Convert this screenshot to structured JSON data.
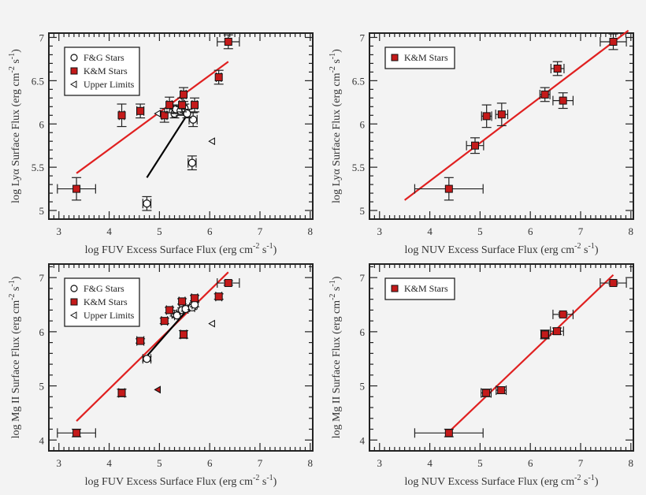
{
  "chart_data": [
    {
      "type": "scatter",
      "xlabel": [
        {
          "t": "log  FUV Excess Surface Flux (erg cm"
        },
        {
          "sup": "-2"
        },
        {
          "t": " s"
        },
        {
          "sup": "-1"
        },
        {
          "t": ")"
        }
      ],
      "ylabel": [
        {
          "t": "log Lyα  Surface Flux (erg cm"
        },
        {
          "sup": "-2"
        },
        {
          "t": " s"
        },
        {
          "sup": "-1"
        },
        {
          "t": ")"
        }
      ],
      "xlim": [
        2.8,
        8.05
      ],
      "ylim": [
        4.9,
        7.05
      ],
      "xticks": [
        3,
        4,
        5,
        6,
        7,
        8
      ],
      "yticks": [
        5,
        5.5,
        6,
        6.5,
        7
      ],
      "ytick_labels": [
        "5",
        "5.5",
        "6",
        "6.5",
        "7"
      ],
      "legend": {
        "placement": "top-left",
        "entries": [
          "F&G Stars",
          "K&M Stars",
          "Upper Limits"
        ]
      },
      "series": [
        {
          "name": "K&M Stars",
          "marker": "square-filled",
          "points": [
            {
              "x": 3.35,
              "y": 5.25,
              "xerr": 0.38,
              "yerr": 0.13
            },
            {
              "x": 4.25,
              "y": 6.1,
              "xerr": 0.05,
              "yerr": 0.13
            },
            {
              "x": 4.62,
              "y": 6.15,
              "xerr": 0.07,
              "yerr": 0.08
            },
            {
              "x": 5.1,
              "y": 6.1,
              "xerr": 0.05,
              "yerr": 0.08
            },
            {
              "x": 5.2,
              "y": 6.22,
              "xerr": 0.05,
              "yerr": 0.09
            },
            {
              "x": 5.45,
              "y": 6.22,
              "xerr": 0.05,
              "yerr": 0.08
            },
            {
              "x": 5.48,
              "y": 6.34,
              "xerr": 0.05,
              "yerr": 0.08
            },
            {
              "x": 5.7,
              "y": 6.22,
              "xerr": 0.05,
              "yerr": 0.08
            },
            {
              "x": 6.18,
              "y": 6.54,
              "xerr": 0.05,
              "yerr": 0.08
            },
            {
              "x": 6.37,
              "y": 6.95,
              "xerr": 0.22,
              "yerr": 0.08
            }
          ]
        },
        {
          "name": "F&G Stars",
          "marker": "circle-open",
          "points": [
            {
              "x": 4.75,
              "y": 5.08,
              "xerr": 0.08,
              "yerr": 0.08
            },
            {
              "x": 5.65,
              "y": 5.55,
              "xerr": 0.08,
              "yerr": 0.08
            },
            {
              "x": 5.67,
              "y": 6.05,
              "xerr": 0.08,
              "yerr": 0.08
            },
            {
              "x": 5.3,
              "y": 6.12,
              "xerr": 0.05,
              "yerr": 0.05
            },
            {
              "x": 5.33,
              "y": 6.17,
              "xerr": 0.05,
              "yerr": 0.05
            },
            {
              "x": 5.42,
              "y": 6.15,
              "xerr": 0.05,
              "yerr": 0.05
            },
            {
              "x": 5.5,
              "y": 6.18,
              "xerr": 0.05,
              "yerr": 0.05
            },
            {
              "x": 5.55,
              "y": 6.12,
              "xerr": 0.05,
              "yerr": 0.05
            }
          ]
        },
        {
          "name": "Upper Limits",
          "marker": "triangle-left-open",
          "points": [
            {
              "x": 4.97,
              "y": 6.12
            },
            {
              "x": 6.05,
              "y": 5.8
            }
          ]
        }
      ],
      "fits": [
        {
          "color": "#e02020",
          "x": [
            3.35,
            6.37
          ],
          "y": [
            5.43,
            6.72
          ]
        },
        {
          "color": "#000000",
          "x": [
            4.75,
            5.6
          ],
          "y": [
            5.38,
            6.15
          ]
        }
      ]
    },
    {
      "type": "scatter",
      "xlabel": [
        {
          "t": "log NUV Excess Surface Flux (erg cm"
        },
        {
          "sup": "-2"
        },
        {
          "t": " s"
        },
        {
          "sup": "-1"
        },
        {
          "t": ")"
        }
      ],
      "ylabel": [
        {
          "t": "log Lyα Surface Flux (erg cm"
        },
        {
          "sup": "-2"
        },
        {
          "t": " s"
        },
        {
          "sup": "-1"
        },
        {
          "t": ")"
        }
      ],
      "xlim": [
        2.8,
        8.05
      ],
      "ylim": [
        4.9,
        7.05
      ],
      "xticks": [
        3,
        4,
        5,
        6,
        7,
        8
      ],
      "yticks": [
        5,
        5.5,
        6,
        6.5,
        7
      ],
      "ytick_labels": [
        "5",
        "5.5",
        "6",
        "6.5",
        "7"
      ],
      "legend": {
        "placement": "top-left",
        "entries": [
          "K&M Stars"
        ]
      },
      "series": [
        {
          "name": "K&M Stars",
          "marker": "square-filled",
          "points": [
            {
              "x": 4.38,
              "y": 5.25,
              "xerr": 0.68,
              "yerr": 0.13
            },
            {
              "x": 4.9,
              "y": 5.75,
              "xerr": 0.17,
              "yerr": 0.09
            },
            {
              "x": 5.13,
              "y": 6.09,
              "xerr": 0.1,
              "yerr": 0.13
            },
            {
              "x": 5.43,
              "y": 6.11,
              "xerr": 0.12,
              "yerr": 0.13
            },
            {
              "x": 6.29,
              "y": 6.34,
              "xerr": 0.1,
              "yerr": 0.08
            },
            {
              "x": 6.54,
              "y": 6.64,
              "xerr": 0.13,
              "yerr": 0.08
            },
            {
              "x": 6.65,
              "y": 6.27,
              "xerr": 0.2,
              "yerr": 0.09
            },
            {
              "x": 7.65,
              "y": 6.95,
              "xerr": 0.26,
              "yerr": 0.09
            }
          ]
        }
      ],
      "fits": [
        {
          "color": "#e02020",
          "x": [
            3.5,
            7.95
          ],
          "y": [
            5.12,
            7.08
          ]
        }
      ]
    },
    {
      "type": "scatter",
      "xlabel": [
        {
          "t": "log FUV Excess Surface Flux (erg cm"
        },
        {
          "sup": "-2"
        },
        {
          "t": " s"
        },
        {
          "sup": "-1"
        },
        {
          "t": ")"
        }
      ],
      "ylabel": [
        {
          "t": "log Mg II Surface Flux (erg cm"
        },
        {
          "sup": "-2"
        },
        {
          "t": " s"
        },
        {
          "sup": "-1"
        },
        {
          "t": ")"
        }
      ],
      "xlim": [
        2.8,
        8.05
      ],
      "ylim": [
        3.8,
        7.25
      ],
      "xticks": [
        3,
        4,
        5,
        6,
        7,
        8
      ],
      "yticks": [
        4,
        5,
        6,
        7
      ],
      "ytick_labels": [
        "4",
        "5",
        "6",
        "7"
      ],
      "legend": {
        "placement": "top-left",
        "entries": [
          "F&G Stars",
          "K&M Stars",
          "Upper Limits"
        ]
      },
      "series": [
        {
          "name": "K&M Stars",
          "marker": "square-filled",
          "points": [
            {
              "x": 3.35,
              "y": 4.13,
              "xerr": 0.38,
              "yerr": 0.07
            },
            {
              "x": 4.25,
              "y": 4.87,
              "xerr": 0.06,
              "yerr": 0.07
            },
            {
              "x": 4.62,
              "y": 5.83,
              "xerr": 0.07,
              "yerr": 0.04
            },
            {
              "x": 5.1,
              "y": 6.2,
              "xerr": 0.06,
              "yerr": 0.05
            },
            {
              "x": 5.2,
              "y": 6.4,
              "xerr": 0.06,
              "yerr": 0.05
            },
            {
              "x": 5.45,
              "y": 6.56,
              "xerr": 0.06,
              "yerr": 0.05
            },
            {
              "x": 5.48,
              "y": 5.95,
              "xerr": 0.06,
              "yerr": 0.07
            },
            {
              "x": 5.7,
              "y": 6.62,
              "xerr": 0.06,
              "yerr": 0.05
            },
            {
              "x": 6.18,
              "y": 6.65,
              "xerr": 0.06,
              "yerr": 0.05
            },
            {
              "x": 6.37,
              "y": 6.9,
              "xerr": 0.22,
              "yerr": 0.04
            }
          ]
        },
        {
          "name": "F&G Stars",
          "marker": "circle-open",
          "points": [
            {
              "x": 4.75,
              "y": 5.5,
              "xerr": 0.08,
              "yerr": 0.04
            },
            {
              "x": 5.3,
              "y": 6.33,
              "xerr": 0.05,
              "yerr": 0.04
            },
            {
              "x": 5.35,
              "y": 6.3,
              "xerr": 0.05,
              "yerr": 0.04
            },
            {
              "x": 5.45,
              "y": 6.4,
              "xerr": 0.05,
              "yerr": 0.04
            },
            {
              "x": 5.52,
              "y": 6.42,
              "xerr": 0.05,
              "yerr": 0.04
            },
            {
              "x": 5.65,
              "y": 6.45,
              "xerr": 0.05,
              "yerr": 0.04
            },
            {
              "x": 5.7,
              "y": 6.5,
              "xerr": 0.05,
              "yerr": 0.04
            }
          ]
        },
        {
          "name": "Upper Limits",
          "marker": "triangle-left-open",
          "points": [
            {
              "x": 4.97,
              "y": 4.93,
              "filled": true
            },
            {
              "x": 6.05,
              "y": 6.15
            }
          ]
        }
      ],
      "fits": [
        {
          "color": "#e02020",
          "x": [
            3.35,
            6.37
          ],
          "y": [
            4.35,
            7.1
          ]
        },
        {
          "color": "#000000",
          "x": [
            4.75,
            5.6
          ],
          "y": [
            5.55,
            6.45
          ]
        }
      ]
    },
    {
      "type": "scatter",
      "xlabel": [
        {
          "t": "log NUV Excess Surface Flux (erg cm"
        },
        {
          "sup": "-2"
        },
        {
          "t": " s"
        },
        {
          "sup": "-1"
        },
        {
          "t": ")"
        }
      ],
      "ylabel": [
        {
          "t": "log Mg II Surface Flux (erg cm"
        },
        {
          "sup": "-2"
        },
        {
          "t": " s"
        },
        {
          "sup": "-1"
        },
        {
          "t": ")"
        }
      ],
      "xlim": [
        2.8,
        8.05
      ],
      "ylim": [
        3.8,
        7.25
      ],
      "xticks": [
        3,
        4,
        5,
        6,
        7,
        8
      ],
      "yticks": [
        4,
        5,
        6,
        7
      ],
      "ytick_labels": [
        "4",
        "5",
        "6",
        "7"
      ],
      "legend": {
        "placement": "top-left",
        "entries": [
          "K&M Stars"
        ]
      },
      "series": [
        {
          "name": "K&M Stars",
          "marker": "square-filled",
          "points": [
            {
              "x": 4.38,
              "y": 4.13,
              "xerr": 0.68,
              "yerr": 0.07
            },
            {
              "x": 5.12,
              "y": 4.87,
              "xerr": 0.1,
              "yerr": 0.07
            },
            {
              "x": 5.42,
              "y": 4.92,
              "xerr": 0.1,
              "yerr": 0.06
            },
            {
              "x": 6.29,
              "y": 5.95,
              "xerr": 0.08,
              "yerr": 0.08
            },
            {
              "x": 6.53,
              "y": 6.01,
              "xerr": 0.13,
              "yerr": 0.06
            },
            {
              "x": 6.65,
              "y": 6.32,
              "xerr": 0.2,
              "yerr": 0.03
            },
            {
              "x": 7.65,
              "y": 6.9,
              "xerr": 0.26,
              "yerr": 0.03
            }
          ]
        }
      ],
      "fits": [
        {
          "color": "#e02020",
          "x": [
            4.38,
            7.65
          ],
          "y": [
            4.15,
            7.05
          ]
        }
      ]
    }
  ],
  "colors": {
    "km_fill": "#c41a1a",
    "fit_red": "#e02020",
    "axis": "#222222"
  }
}
